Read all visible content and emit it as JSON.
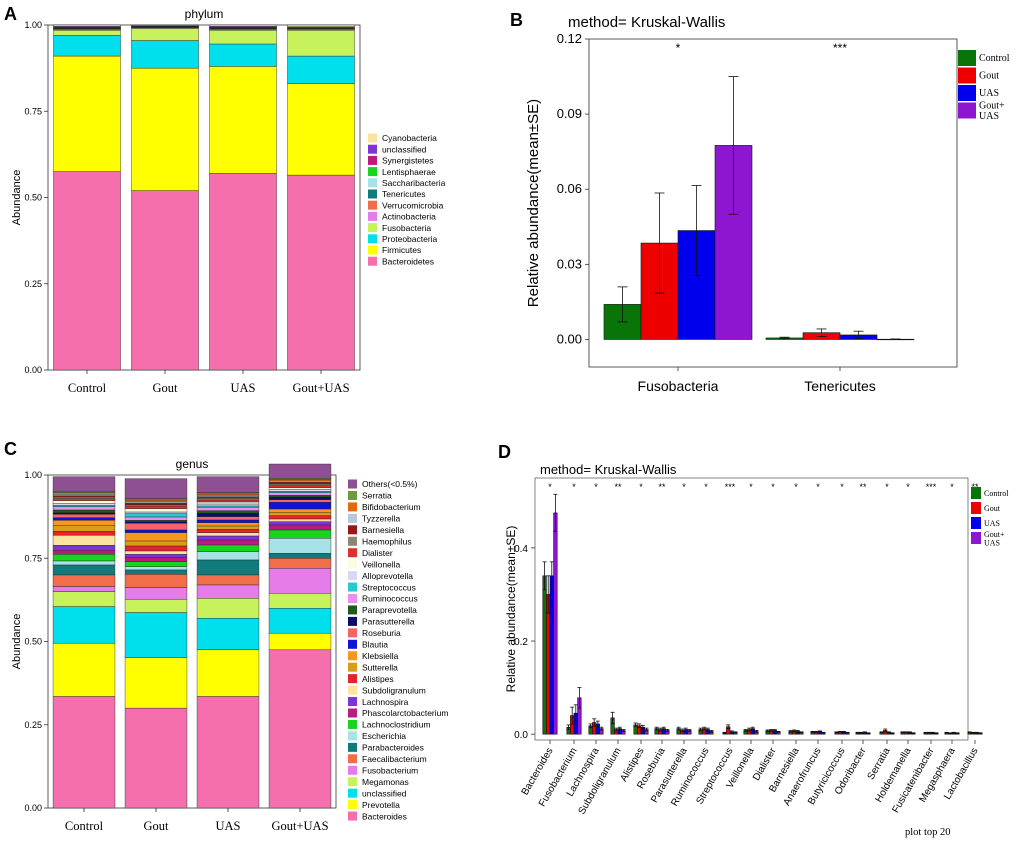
{
  "panels": {
    "a": "A",
    "b": "B",
    "c": "C",
    "d": "D"
  },
  "chart_data": [
    {
      "id": "A",
      "type": "bar",
      "stacked": true,
      "title": "phylum",
      "xlabel": "",
      "ylabel": "Abundance",
      "ylim": [
        0,
        1
      ],
      "yticks": [
        "0.00",
        "0.25",
        "0.50",
        "0.75",
        "1.00"
      ],
      "categories": [
        "Control",
        "Gout",
        "UAS",
        "Gout+UAS"
      ],
      "series": [
        {
          "name": "Bacteroidetes",
          "color": "#f46fac",
          "values": [
            0.575,
            0.52,
            0.57,
            0.565
          ]
        },
        {
          "name": "Firmicutes",
          "color": "#ffff00",
          "values": [
            0.335,
            0.355,
            0.31,
            0.265
          ]
        },
        {
          "name": "Proteobacteria",
          "color": "#00e0ec",
          "values": [
            0.06,
            0.08,
            0.065,
            0.08
          ]
        },
        {
          "name": "Fusobacteria",
          "color": "#c7f25c",
          "values": [
            0.015,
            0.035,
            0.04,
            0.075
          ]
        },
        {
          "name": "Actinobacteria",
          "color": "#e57ce8",
          "values": [
            0.002,
            0.002,
            0.002,
            0.002
          ]
        },
        {
          "name": "Verrucomicrobia",
          "color": "#f26d49",
          "values": [
            0.002,
            0.001,
            0.002,
            0.002
          ]
        },
        {
          "name": "Tenericutes",
          "color": "#107b7a",
          "values": [
            0.001,
            0.001,
            0.001,
            0.0
          ]
        },
        {
          "name": "Saccharibacteria",
          "color": "#a6e2e6",
          "values": [
            0.001,
            0.001,
            0.001,
            0.001
          ]
        },
        {
          "name": "Lentisphaerae",
          "color": "#17d51e",
          "values": [
            0.001,
            0.001,
            0.001,
            0.001
          ]
        },
        {
          "name": "Synergistetes",
          "color": "#bb1a80",
          "values": [
            0.002,
            0.001,
            0.002,
            0.002
          ]
        },
        {
          "name": "unclassified",
          "color": "#7b35d5",
          "values": [
            0.002,
            0.001,
            0.002,
            0.002
          ]
        },
        {
          "name": "Cyanobacteria",
          "color": "#fbe3a0",
          "values": [
            0.004,
            0.002,
            0.004,
            0.005
          ]
        }
      ]
    },
    {
      "id": "B",
      "type": "bar",
      "title": "method= Kruskal-Wallis",
      "xlabel": "",
      "ylabel": "Relative abundance(mean±SE)",
      "ylim": [
        -0.011,
        0.12
      ],
      "yticks": [
        "0.00",
        "0.03",
        "0.06",
        "0.09",
        "0.12"
      ],
      "categories": [
        "Fusobacteria",
        "Tenericutes"
      ],
      "significance": [
        "*",
        "***"
      ],
      "series": [
        {
          "name": "Control",
          "color": "#097509",
          "values": [
            0.014,
            0.0006
          ],
          "se": [
            0.007,
            0.0003
          ]
        },
        {
          "name": "Gout",
          "color": "#ee0000",
          "values": [
            0.0385,
            0.0027
          ],
          "se": [
            0.02,
            0.0015
          ]
        },
        {
          "name": "UAS",
          "color": "#0000ee",
          "values": [
            0.0435,
            0.0018
          ],
          "se": [
            0.018,
            0.0015
          ]
        },
        {
          "name": "Gout+\nUAS",
          "color": "#8f16d1",
          "values": [
            0.0775,
            0.0001
          ],
          "se": [
            0.0275,
            0.0001
          ]
        }
      ]
    },
    {
      "id": "C",
      "type": "bar",
      "stacked": true,
      "title": "genus",
      "xlabel": "",
      "ylabel": "Abundance",
      "ylim": [
        0,
        1
      ],
      "yticks": [
        "0.00",
        "0.25",
        "0.50",
        "0.75",
        "1.00"
      ],
      "categories": [
        "Control",
        "Gout",
        "UAS",
        "Gout+UAS"
      ],
      "series": [
        {
          "name": "Bacteroides",
          "color": "#f46fac",
          "values": [
            0.335,
            0.3,
            0.335,
            0.475
          ]
        },
        {
          "name": "Prevotella",
          "color": "#ffff00",
          "values": [
            0.16,
            0.152,
            0.14,
            0.05
          ]
        },
        {
          "name": "unclassified",
          "color": "#00e0ec",
          "values": [
            0.11,
            0.135,
            0.095,
            0.075
          ]
        },
        {
          "name": "Megamonas",
          "color": "#c7f25c",
          "values": [
            0.045,
            0.04,
            0.06,
            0.045
          ]
        },
        {
          "name": "Fusobacterium",
          "color": "#e57ce8",
          "values": [
            0.015,
            0.035,
            0.04,
            0.075
          ]
        },
        {
          "name": "Faecalibacterium",
          "color": "#f26d49",
          "values": [
            0.035,
            0.04,
            0.03,
            0.03
          ]
        },
        {
          "name": "Parabacteroides",
          "color": "#107b7a",
          "values": [
            0.03,
            0.013,
            0.045,
            0.015
          ]
        },
        {
          "name": "Escherichia",
          "color": "#a6e2e6",
          "values": [
            0.012,
            0.01,
            0.025,
            0.045
          ]
        },
        {
          "name": "Lachnoclostridium",
          "color": "#17d51e",
          "values": [
            0.02,
            0.015,
            0.02,
            0.025
          ]
        },
        {
          "name": "Phascolarctobacterium",
          "color": "#bb1a80",
          "values": [
            0.012,
            0.012,
            0.015,
            0.015
          ]
        },
        {
          "name": "Lachnospira",
          "color": "#7b35d5",
          "values": [
            0.015,
            0.01,
            0.012,
            0.01
          ]
        },
        {
          "name": "Subdoligranulum",
          "color": "#fbe3a0",
          "values": [
            0.03,
            0.01,
            0.01,
            0.008
          ]
        },
        {
          "name": "Alistipes",
          "color": "#e8212a",
          "values": [
            0.012,
            0.015,
            0.01,
            0.01
          ]
        },
        {
          "name": "Sutterella",
          "color": "#d89f16",
          "values": [
            0.018,
            0.015,
            0.01,
            0.01
          ]
        },
        {
          "name": "Klebsiella",
          "color": "#f8961e",
          "values": [
            0.015,
            0.025,
            0.01,
            0.01
          ]
        },
        {
          "name": "Blautia",
          "color": "#1012d8",
          "values": [
            0.008,
            0.008,
            0.008,
            0.02
          ]
        },
        {
          "name": "Roseburia",
          "color": "#f46466",
          "values": [
            0.01,
            0.02,
            0.01,
            0.008
          ]
        },
        {
          "name": "Parasutterella",
          "color": "#0c0c6e",
          "values": [
            0.005,
            0.005,
            0.01,
            0.008
          ]
        },
        {
          "name": "Paraprevotella",
          "color": "#1e5c19",
          "values": [
            0.008,
            0.004,
            0.008,
            0.005
          ]
        },
        {
          "name": "Ruminococcus",
          "color": "#e88ff0",
          "values": [
            0.01,
            0.01,
            0.01,
            0.008
          ]
        },
        {
          "name": "Streptococcus",
          "color": "#27c9cf",
          "values": [
            0.004,
            0.01,
            0.004,
            0.004
          ]
        },
        {
          "name": "Alloprevotella",
          "color": "#d8d8f0",
          "values": [
            0.006,
            0.005,
            0.006,
            0.006
          ]
        },
        {
          "name": "Veillonella",
          "color": "#fdfbe4",
          "values": [
            0.008,
            0.01,
            0.006,
            0.005
          ]
        },
        {
          "name": "Dialister",
          "color": "#d8332f",
          "values": [
            0.006,
            0.008,
            0.006,
            0.006
          ]
        },
        {
          "name": "Haemophilus",
          "color": "#8d8573",
          "values": [
            0.005,
            0.004,
            0.005,
            0.005
          ]
        },
        {
          "name": "Barnesiella",
          "color": "#9b1616",
          "values": [
            0.004,
            0.004,
            0.005,
            0.005
          ]
        },
        {
          "name": "Tyzzerella",
          "color": "#b8c8d8",
          "values": [
            0.004,
            0.004,
            0.004,
            0.004
          ]
        },
        {
          "name": "Bifidobacterium",
          "color": "#e36a0e",
          "values": [
            0.005,
            0.006,
            0.004,
            0.004
          ]
        },
        {
          "name": "Serratia",
          "color": "#6e9a3c",
          "values": [
            0.004,
            0.004,
            0.004,
            0.004
          ]
        },
        {
          "name": "Others(<0.5%)",
          "color": "#8e4f93",
          "values": [
            0.044,
            0.06,
            0.048,
            0.043
          ]
        }
      ]
    },
    {
      "id": "D",
      "type": "bar",
      "title": "method= Kruskal-Wallis",
      "xlabel": "",
      "ylabel": "Relative abundance(mean±SE)",
      "ylim": [
        -0.0125,
        0.55
      ],
      "yticks": [
        "0.0",
        "0.2",
        "0.4"
      ],
      "footnote": "plot top 20",
      "categories": [
        "Bacteroides",
        "Fusobacterium",
        "Lachnospira",
        "Subdoligranulum",
        "Alistipes",
        "Roseburia",
        "Parasutterella",
        "Ruminococcus",
        "Streptococcus",
        "Veillonella",
        "Dialister",
        "Barnesiella",
        "Anaerofruncus",
        "Butyricicoccus",
        "Odoribacter",
        "Serratia",
        "Holdemanella",
        "Fusicatenibacter",
        "Megasphaera",
        "Lactobacillus"
      ],
      "significance": [
        "*",
        "*",
        "*",
        "**",
        "*",
        "**",
        "*",
        "*",
        "***",
        "*",
        "*",
        "*",
        "*",
        "*",
        "**",
        "*",
        "*",
        "***",
        "*",
        "**"
      ],
      "series": [
        {
          "name": "Control",
          "color": "#097509",
          "values": [
            0.34,
            0.015,
            0.018,
            0.035,
            0.02,
            0.012,
            0.012,
            0.01,
            0.003,
            0.008,
            0.007,
            0.006,
            0.005,
            0.004,
            0.003,
            0.004,
            0.004,
            0.003,
            0.003,
            0.004
          ],
          "se": [
            0.03,
            0.005,
            0.004,
            0.012,
            0.004,
            0.003,
            0.003,
            0.003,
            0.001,
            0.002,
            0.002,
            0.002,
            0.001,
            0.001,
            0.001,
            0.001,
            0.001,
            0.001,
            0.001,
            0.001
          ]
        },
        {
          "name": "Gout",
          "color": "#ee0000",
          "values": [
            0.3,
            0.04,
            0.025,
            0.01,
            0.018,
            0.01,
            0.008,
            0.012,
            0.016,
            0.01,
            0.008,
            0.007,
            0.005,
            0.005,
            0.003,
            0.008,
            0.004,
            0.003,
            0.002,
            0.003
          ],
          "se": [
            0.04,
            0.018,
            0.008,
            0.003,
            0.004,
            0.003,
            0.003,
            0.003,
            0.004,
            0.003,
            0.002,
            0.002,
            0.001,
            0.001,
            0.001,
            0.003,
            0.001,
            0.001,
            0.001,
            0.001
          ]
        },
        {
          "name": "UAS",
          "color": "#0000ee",
          "values": [
            0.34,
            0.045,
            0.022,
            0.012,
            0.015,
            0.012,
            0.01,
            0.01,
            0.005,
            0.012,
            0.008,
            0.006,
            0.006,
            0.005,
            0.004,
            0.004,
            0.004,
            0.003,
            0.003,
            0.003
          ],
          "se": [
            0.03,
            0.018,
            0.006,
            0.003,
            0.004,
            0.003,
            0.003,
            0.003,
            0.002,
            0.003,
            0.002,
            0.002,
            0.001,
            0.001,
            0.001,
            0.001,
            0.001,
            0.001,
            0.001,
            0.001
          ]
        },
        {
          "name": "Gout+\nUAS",
          "color": "#8f16d1",
          "values": [
            0.475,
            0.078,
            0.012,
            0.008,
            0.01,
            0.008,
            0.008,
            0.006,
            0.004,
            0.006,
            0.005,
            0.004,
            0.003,
            0.003,
            0.002,
            0.002,
            0.002,
            0.002,
            0.002,
            0.002
          ],
          "se": [
            0.04,
            0.022,
            0.003,
            0.002,
            0.003,
            0.002,
            0.002,
            0.002,
            0.001,
            0.002,
            0.001,
            0.001,
            0.001,
            0.001,
            0.001,
            0.001,
            0.001,
            0.001,
            0.001,
            0.001
          ]
        }
      ]
    }
  ]
}
